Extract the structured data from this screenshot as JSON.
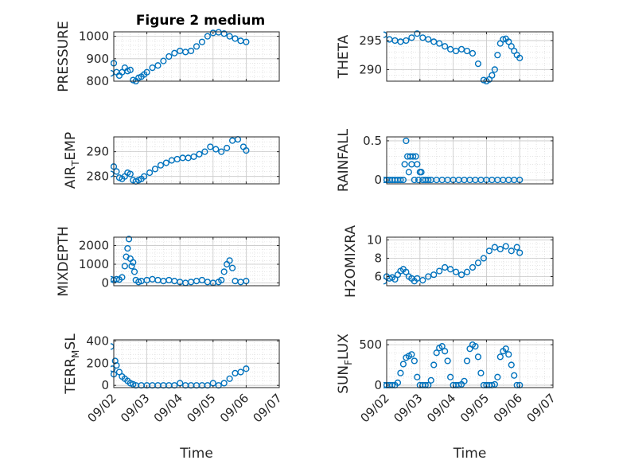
{
  "figure_title": "Figure 2 medium",
  "marker_color": "#0072BD",
  "chart_data": [
    {
      "type": "scatter",
      "ylabel": "PRESSURE",
      "ylim": [
        800,
        1020
      ],
      "yticks": [
        800,
        900,
        1000
      ],
      "ytick_labels": [
        "800",
        "900",
        "1000"
      ],
      "xlim": [
        "09/02",
        "09/07"
      ],
      "xticks": [
        "09/02",
        "09/03",
        "09/04",
        "09/05",
        "09/06",
        "09/07"
      ],
      "grid": true,
      "minor_grid": true,
      "x": [
        "09/01 22:00",
        "09/02 00:00",
        "09/02 02:00",
        "09/02 04:00",
        "09/02 06:00",
        "09/02 08:00",
        "09/02 10:00",
        "09/02 12:00",
        "09/02 14:00",
        "09/02 16:00",
        "09/02 18:00",
        "09/02 20:00",
        "09/02 22:00",
        "09/03 00:00",
        "09/03 04:00",
        "09/03 08:00",
        "09/03 12:00",
        "09/03 16:00",
        "09/03 20:00",
        "09/04 00:00",
        "09/04 04:00",
        "09/04 08:00",
        "09/04 12:00",
        "09/04 16:00",
        "09/04 20:00",
        "09/05 00:00",
        "09/05 04:00",
        "09/05 08:00",
        "09/05 12:00",
        "09/05 16:00",
        "09/05 20:00",
        "09/06 00:00"
      ],
      "y": [
        835,
        880,
        840,
        825,
        840,
        860,
        845,
        850,
        805,
        800,
        815,
        820,
        830,
        840,
        860,
        870,
        890,
        910,
        925,
        935,
        930,
        935,
        955,
        975,
        1000,
        1015,
        1018,
        1012,
        1000,
        990,
        980,
        975
      ]
    },
    {
      "type": "scatter",
      "ylabel": "THETA",
      "ylim": [
        288,
        296.5
      ],
      "yticks": [
        290,
        295
      ],
      "ytick_labels": [
        "290",
        "295"
      ],
      "xlim": [
        "09/02",
        "09/07"
      ],
      "xticks": [
        "09/02",
        "09/03",
        "09/04",
        "09/05",
        "09/06",
        "09/07"
      ],
      "grid": true,
      "minor_grid": true,
      "x": [
        "09/01 22:00",
        "09/02 02:00",
        "09/02 06:00",
        "09/02 10:00",
        "09/02 14:00",
        "09/02 18:00",
        "09/02 22:00",
        "09/03 02:00",
        "09/03 06:00",
        "09/03 10:00",
        "09/03 14:00",
        "09/03 18:00",
        "09/03 22:00",
        "09/04 02:00",
        "09/04 06:00",
        "09/04 10:00",
        "09/04 14:00",
        "09/04 18:00",
        "09/04 22:00",
        "09/05 00:00",
        "09/05 02:00",
        "09/05 04:00",
        "09/05 06:00",
        "09/05 08:00",
        "09/05 10:00",
        "09/05 12:00",
        "09/05 14:00",
        "09/05 16:00",
        "09/05 18:00",
        "09/05 20:00",
        "09/05 22:00",
        "09/06 00:00"
      ],
      "y": [
        296,
        295.2,
        295,
        294.8,
        295,
        295.5,
        296.2,
        295.5,
        295.2,
        294.8,
        294.5,
        294,
        293.5,
        293.2,
        293.5,
        293.2,
        292.8,
        291,
        288.2,
        288,
        288.3,
        289,
        290,
        292.5,
        294.5,
        295.2,
        295.3,
        294.8,
        294,
        293.2,
        292.5,
        292
      ]
    },
    {
      "type": "scatter",
      "ylabel": "AIR_TEMP",
      "ylabel_display": [
        "AIR",
        "T",
        "EMP"
      ],
      "ylim": [
        277,
        296
      ],
      "yticks": [
        280,
        290
      ],
      "ytick_labels": [
        "280",
        "290"
      ],
      "xlim": [
        "09/02",
        "09/07"
      ],
      "xticks": [
        "09/02",
        "09/03",
        "09/04",
        "09/05",
        "09/06",
        "09/07"
      ],
      "grid": true,
      "minor_grid": true,
      "x": [
        "09/01 22:00",
        "09/02 00:00",
        "09/02 02:00",
        "09/02 04:00",
        "09/02 06:00",
        "09/02 08:00",
        "09/02 10:00",
        "09/02 12:00",
        "09/02 14:00",
        "09/02 16:00",
        "09/02 18:00",
        "09/02 20:00",
        "09/02 22:00",
        "09/03 02:00",
        "09/03 06:00",
        "09/03 10:00",
        "09/03 14:00",
        "09/03 18:00",
        "09/03 22:00",
        "09/04 02:00",
        "09/04 06:00",
        "09/04 10:00",
        "09/04 14:00",
        "09/04 18:00",
        "09/04 22:00",
        "09/05 02:00",
        "09/05 06:00",
        "09/05 10:00",
        "09/05 14:00",
        "09/05 18:00",
        "09/05 22:00",
        "09/06 00:00"
      ],
      "y": [
        281,
        284,
        282,
        279.5,
        279,
        280,
        281.5,
        281,
        278.5,
        278,
        278.5,
        279,
        280,
        281.5,
        283,
        284.5,
        285.5,
        286.5,
        287,
        287.5,
        287.5,
        288,
        289,
        290,
        292,
        291,
        290,
        291.5,
        294.5,
        295,
        292,
        290.5
      ]
    },
    {
      "type": "scatter",
      "ylabel": "RAINFALL",
      "ylim": [
        -0.05,
        0.55
      ],
      "yticks": [
        0,
        0.5
      ],
      "ytick_labels": [
        "0",
        "0.5"
      ],
      "xlim": [
        "09/02",
        "09/07"
      ],
      "xticks": [
        "09/02",
        "09/03",
        "09/04",
        "09/05",
        "09/06",
        "09/07"
      ],
      "grid": true,
      "minor_grid": true,
      "x": [
        "09/01 22:00",
        "09/02 00:00",
        "09/02 02:00",
        "09/02 04:00",
        "09/02 06:00",
        "09/02 08:00",
        "09/02 10:00",
        "09/02 12:00",
        "09/02 13:00",
        "09/02 14:00",
        "09/02 15:00",
        "09/02 16:00",
        "09/02 17:00",
        "09/02 18:00",
        "09/02 19:00",
        "09/02 20:00",
        "09/02 21:00",
        "09/02 22:00",
        "09/02 23:00",
        "09/03 00:00",
        "09/03 01:00",
        "09/03 02:00",
        "09/03 04:00",
        "09/03 06:00",
        "09/03 08:00",
        "09/03 12:00",
        "09/03 16:00",
        "09/03 20:00",
        "09/04 00:00",
        "09/04 04:00",
        "09/04 08:00",
        "09/04 12:00",
        "09/04 16:00",
        "09/04 20:00",
        "09/05 00:00",
        "09/05 04:00",
        "09/05 08:00",
        "09/05 12:00",
        "09/05 16:00",
        "09/05 20:00",
        "09/06 00:00"
      ],
      "y": [
        0,
        0,
        0,
        0,
        0,
        0,
        0,
        0,
        0.2,
        0.5,
        0.3,
        0.1,
        0.3,
        0.2,
        0.3,
        0,
        0.3,
        0.2,
        0,
        0.1,
        0.1,
        0,
        0,
        0,
        0,
        0,
        0,
        0,
        0,
        0,
        0,
        0,
        0,
        0,
        0,
        0,
        0,
        0,
        0,
        0,
        0
      ]
    },
    {
      "type": "scatter",
      "ylabel": "MIXDEPTH",
      "ylim": [
        -150,
        2450
      ],
      "yticks": [
        0,
        1000,
        2000
      ],
      "ytick_labels": [
        "0",
        "1000",
        "2000"
      ],
      "xlim": [
        "09/02",
        "09/07"
      ],
      "xticks": [
        "09/02",
        "09/03",
        "09/04",
        "09/05",
        "09/06",
        "09/07"
      ],
      "grid": true,
      "minor_grid": true,
      "x": [
        "09/01 22:00",
        "09/02 00:00",
        "09/02 02:00",
        "09/02 04:00",
        "09/02 06:00",
        "09/02 08:00",
        "09/02 09:00",
        "09/02 10:00",
        "09/02 11:00",
        "09/02 12:00",
        "09/02 13:00",
        "09/02 14:00",
        "09/02 15:00",
        "09/02 16:00",
        "09/02 18:00",
        "09/02 20:00",
        "09/03 00:00",
        "09/03 04:00",
        "09/03 08:00",
        "09/03 12:00",
        "09/03 16:00",
        "09/03 20:00",
        "09/04 00:00",
        "09/04 04:00",
        "09/04 08:00",
        "09/04 12:00",
        "09/04 16:00",
        "09/04 20:00",
        "09/05 00:00",
        "09/05 04:00",
        "09/05 06:00",
        "09/05 08:00",
        "09/05 10:00",
        "09/05 12:00",
        "09/05 14:00",
        "09/05 16:00",
        "09/05 20:00",
        "09/06 00:00"
      ],
      "y": [
        200,
        150,
        200,
        180,
        300,
        900,
        1400,
        1850,
        2350,
        1300,
        900,
        1100,
        600,
        150,
        50,
        100,
        150,
        200,
        150,
        100,
        150,
        100,
        50,
        0,
        50,
        100,
        150,
        50,
        0,
        50,
        150,
        600,
        1000,
        1200,
        800,
        100,
        50,
        100
      ]
    },
    {
      "type": "scatter",
      "ylabel": "H2OMIXRA",
      "ylim": [
        5,
        10.3
      ],
      "yticks": [
        6,
        8,
        10
      ],
      "ytick_labels": [
        "6",
        "8",
        "10"
      ],
      "xlim": [
        "09/02",
        "09/07"
      ],
      "xticks": [
        "09/02",
        "09/03",
        "09/04",
        "09/05",
        "09/06",
        "09/07"
      ],
      "grid": true,
      "minor_grid": true,
      "x": [
        "09/01 22:00",
        "09/02 00:00",
        "09/02 02:00",
        "09/02 04:00",
        "09/02 06:00",
        "09/02 08:00",
        "09/02 10:00",
        "09/02 12:00",
        "09/02 14:00",
        "09/02 16:00",
        "09/02 18:00",
        "09/02 20:00",
        "09/02 22:00",
        "09/03 02:00",
        "09/03 06:00",
        "09/03 10:00",
        "09/03 14:00",
        "09/03 18:00",
        "09/03 22:00",
        "09/04 02:00",
        "09/04 06:00",
        "09/04 10:00",
        "09/04 14:00",
        "09/04 18:00",
        "09/04 22:00",
        "09/05 02:00",
        "09/05 06:00",
        "09/05 10:00",
        "09/05 14:00",
        "09/05 18:00",
        "09/05 22:00",
        "09/06 00:00"
      ],
      "y": [
        5.5,
        6,
        5.8,
        5.9,
        5.7,
        6.2,
        6.6,
        6.8,
        6.5,
        6,
        5.8,
        5.5,
        5.8,
        5.6,
        6,
        6.2,
        6.6,
        7,
        6.8,
        6.5,
        6.2,
        6.5,
        7,
        7.5,
        8,
        8.8,
        9.2,
        9,
        9.3,
        8.8,
        9.2,
        8.6
      ]
    },
    {
      "type": "scatter",
      "ylabel": "TERR_MSL",
      "ylabel_display": [
        "TERR",
        "M",
        "SL"
      ],
      "ylim": [
        -20,
        410
      ],
      "yticks": [
        0,
        200,
        400
      ],
      "ytick_labels": [
        "0",
        "200",
        "400"
      ],
      "xlim": [
        "09/02",
        "09/07"
      ],
      "xticks": [
        "09/02",
        "09/03",
        "09/04",
        "09/05",
        "09/06",
        "09/07"
      ],
      "xtick_labels": [
        "09/02",
        "09/03",
        "09/04",
        "09/05",
        "09/06",
        "09/07"
      ],
      "xlabel": "Time",
      "grid": true,
      "minor_grid": true,
      "x": [
        "09/01 22:00",
        "09/01 23:00",
        "09/02 00:00",
        "09/02 01:00",
        "09/02 02:00",
        "09/02 04:00",
        "09/02 06:00",
        "09/02 08:00",
        "09/02 10:00",
        "09/02 12:00",
        "09/02 14:00",
        "09/02 16:00",
        "09/02 20:00",
        "09/03 00:00",
        "09/03 04:00",
        "09/03 08:00",
        "09/03 12:00",
        "09/03 16:00",
        "09/03 20:00",
        "09/04 00:00",
        "09/04 04:00",
        "09/04 08:00",
        "09/04 12:00",
        "09/04 16:00",
        "09/04 20:00",
        "09/05 00:00",
        "09/05 04:00",
        "09/05 08:00",
        "09/05 12:00",
        "09/05 16:00",
        "09/05 20:00",
        "09/06 00:00"
      ],
      "y": [
        350,
        150,
        100,
        220,
        180,
        120,
        80,
        60,
        40,
        20,
        10,
        0,
        0,
        0,
        0,
        0,
        0,
        0,
        0,
        20,
        0,
        0,
        0,
        0,
        0,
        20,
        0,
        20,
        60,
        110,
        120,
        150
      ]
    },
    {
      "type": "scatter",
      "ylabel": "SUN_FLUX",
      "ylabel_display": [
        "SUN",
        "F",
        "LUX"
      ],
      "ylim": [
        -30,
        560
      ],
      "yticks": [
        0,
        500
      ],
      "ytick_labels": [
        "0",
        "500"
      ],
      "xlim": [
        "09/02",
        "09/07"
      ],
      "xticks": [
        "09/02",
        "09/03",
        "09/04",
        "09/05",
        "09/06",
        "09/07"
      ],
      "xtick_labels": [
        "09/02",
        "09/03",
        "09/04",
        "09/05",
        "09/06",
        "09/07"
      ],
      "xlabel": "Time",
      "grid": true,
      "minor_grid": true,
      "x": [
        "09/01 22:00",
        "09/02 00:00",
        "09/02 02:00",
        "09/02 04:00",
        "09/02 06:00",
        "09/02 08:00",
        "09/02 10:00",
        "09/02 12:00",
        "09/02 14:00",
        "09/02 16:00",
        "09/02 18:00",
        "09/02 20:00",
        "09/02 22:00",
        "09/03 00:00",
        "09/03 02:00",
        "09/03 04:00",
        "09/03 06:00",
        "09/03 08:00",
        "09/03 10:00",
        "09/03 12:00",
        "09/03 14:00",
        "09/03 16:00",
        "09/03 18:00",
        "09/03 20:00",
        "09/03 22:00",
        "09/04 00:00",
        "09/04 02:00",
        "09/04 04:00",
        "09/04 06:00",
        "09/04 08:00",
        "09/04 10:00",
        "09/04 12:00",
        "09/04 14:00",
        "09/04 16:00",
        "09/04 18:00",
        "09/04 20:00",
        "09/04 22:00",
        "09/05 00:00",
        "09/05 02:00",
        "09/05 04:00",
        "09/05 06:00",
        "09/05 08:00",
        "09/05 10:00",
        "09/05 12:00",
        "09/05 14:00",
        "09/05 16:00",
        "09/05 18:00",
        "09/05 20:00",
        "09/05 22:00",
        "09/06 00:00"
      ],
      "y": [
        0,
        0,
        0,
        0,
        0,
        30,
        150,
        260,
        340,
        360,
        380,
        300,
        100,
        0,
        0,
        0,
        0,
        60,
        250,
        400,
        460,
        480,
        420,
        300,
        100,
        0,
        0,
        0,
        10,
        50,
        300,
        450,
        500,
        480,
        350,
        150,
        0,
        0,
        0,
        0,
        10,
        100,
        350,
        420,
        450,
        380,
        250,
        120,
        0,
        0
      ]
    }
  ]
}
